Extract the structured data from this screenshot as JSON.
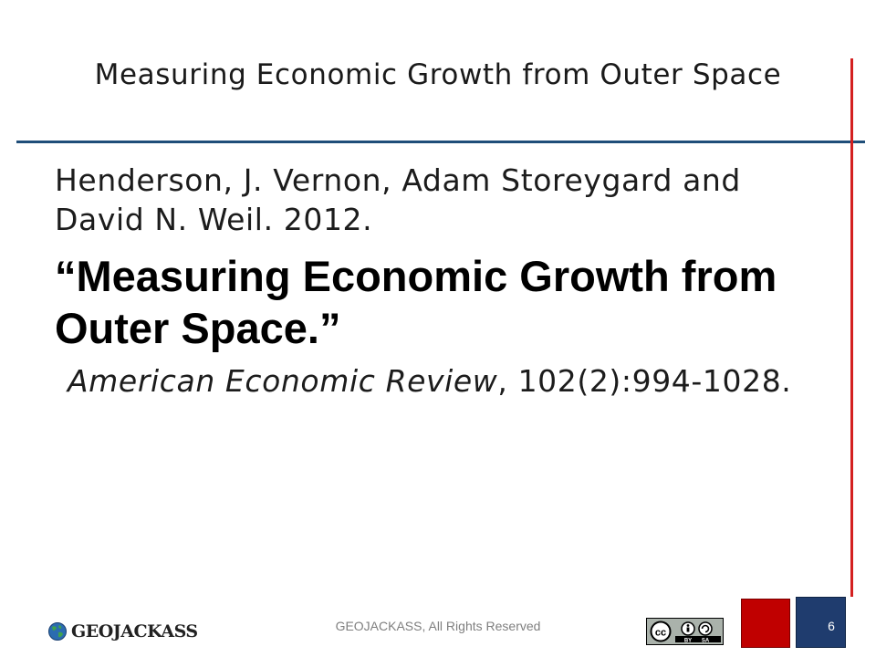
{
  "slide": {
    "title": "Measuring Economic Growth from Outer Space",
    "citation": {
      "authors": "Henderson, J. Vernon, Adam Storeygard and David N. Weil. 2012.",
      "article_title": "“Measuring Economic Growth from Outer Space.”",
      "journal": "American Economic Review",
      "pages": ", 102(2):994-1028."
    }
  },
  "footer": {
    "logo_text": "GEOJACKASS",
    "copyright": "GEOJACKASS, All Rights Reserved",
    "license_badge": "CC BY SA",
    "page_number": "6"
  },
  "colors": {
    "title_rule": "#1f4e79",
    "side_rule": "#d42020",
    "red_square": "#c00000",
    "blue_square": "#1f3c6e"
  },
  "icons": [
    "globe-icon",
    "creative-commons-icon"
  ]
}
